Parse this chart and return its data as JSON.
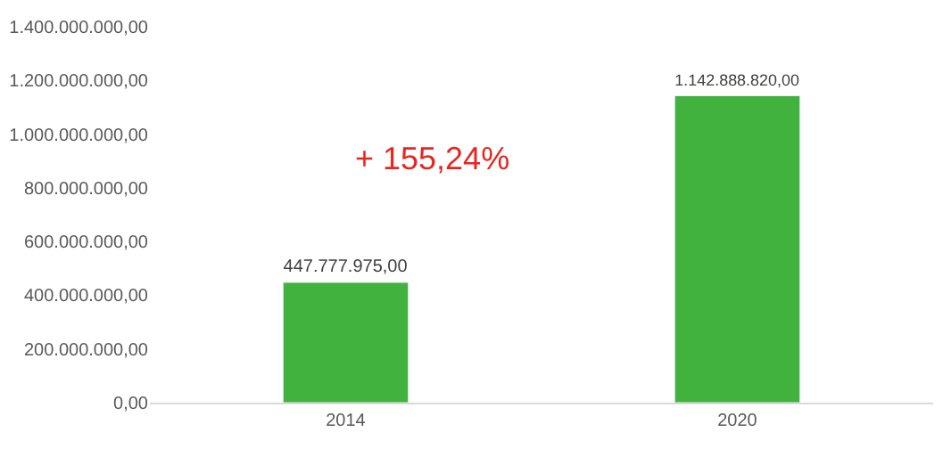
{
  "chart_data": {
    "type": "bar",
    "categories": [
      "2014",
      "2020"
    ],
    "series": [
      {
        "color": "#42b23e",
        "values": [
          447777975,
          1142888820
        ],
        "value_labels": [
          "447.777.975,00",
          "1.142.888.820,00"
        ]
      }
    ],
    "ylim": [
      0,
      1400000000
    ],
    "yticks": [
      {
        "value": 0,
        "label": "0,00"
      },
      {
        "value": 200000000,
        "label": "200.000.000,00"
      },
      {
        "value": 400000000,
        "label": "400.000.000,00"
      },
      {
        "value": 600000000,
        "label": "600.000.000,00"
      },
      {
        "value": 800000000,
        "label": "800.000.000,00"
      },
      {
        "value": 1000000000,
        "label": "1.000.000.000,00"
      },
      {
        "value": 1200000000,
        "label": "1.200.000.000,00"
      },
      {
        "value": 1400000000,
        "label": "1.400.000.000,00"
      }
    ],
    "annotations": [
      "+ 155,24%"
    ]
  }
}
